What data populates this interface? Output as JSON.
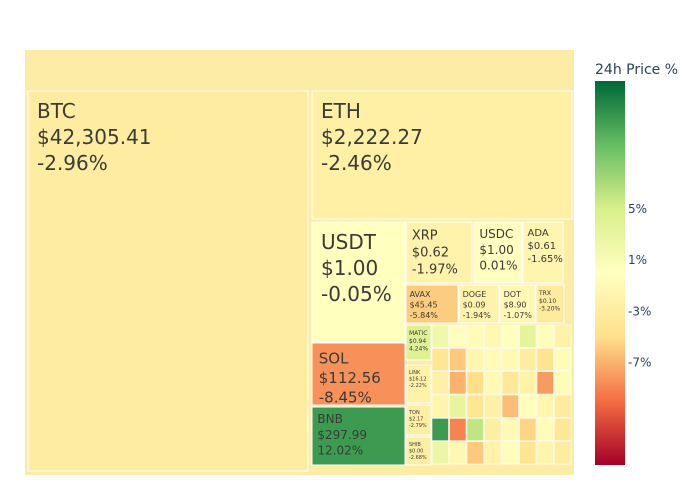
{
  "chart_data": {
    "type": "treemap",
    "title": "",
    "colorbar": {
      "title": "24h Price %",
      "ticks": [
        {
          "label": "5%",
          "value": 5
        },
        {
          "label": "1%",
          "value": 1
        },
        {
          "label": "-3%",
          "value": -3
        },
        {
          "label": "-7%",
          "value": -7
        }
      ],
      "range": [
        -15,
        15
      ],
      "colors": [
        "#a50026",
        "#f46d43",
        "#fee08b",
        "#ffffbf",
        "#d9ef8b",
        "#66bd63",
        "#006837"
      ]
    },
    "root_color": "#fdeca5",
    "tiles": [
      {
        "symbol": "BTC",
        "price": "$42,305.41",
        "change_label": "-2.96%",
        "change": -2.96
      },
      {
        "symbol": "ETH",
        "price": "$2,222.27",
        "change_label": "-2.46%",
        "change": -2.46
      },
      {
        "symbol": "USDT",
        "price": "$1.00",
        "change_label": "-0.05%",
        "change": -0.05
      },
      {
        "symbol": "SOL",
        "price": "$112.56",
        "change_label": "-8.45%",
        "change": -8.45
      },
      {
        "symbol": "BNB",
        "price": "$297.99",
        "change_label": "12.02%",
        "change": 12.02
      },
      {
        "symbol": "XRP",
        "price": "$0.62",
        "change_label": "-1.97%",
        "change": -1.97
      },
      {
        "symbol": "USDC",
        "price": "$1.00",
        "change_label": "0.01%",
        "change": 0.01
      },
      {
        "symbol": "ADA",
        "price": "$0.61",
        "change_label": "-1.65%",
        "change": -1.65
      },
      {
        "symbol": "AVAX",
        "price": "$45.45",
        "change_label": "-5.84%",
        "change": -5.84
      },
      {
        "symbol": "DOGE",
        "price": "$0.09",
        "change_label": "-1.94%",
        "change": -1.94
      },
      {
        "symbol": "DOT",
        "price": "$8.90",
        "change_label": "-1.07%",
        "change": -1.07
      },
      {
        "symbol": "TRX",
        "price": "$0.10",
        "change_label": "-3.20%",
        "change": -3.2
      },
      {
        "symbol": "MATIC",
        "price": "$0.94",
        "change_label": "4.24%",
        "change": 4.24
      },
      {
        "symbol": "LINK",
        "price": "$16.12",
        "change_label": "-2.22%",
        "change": -2.22
      },
      {
        "symbol": "TON",
        "price": "$2.17",
        "change_label": "-2.79%",
        "change": -2.79
      },
      {
        "symbol": "SHIB",
        "price": "$0.00",
        "change_label": "-2.68%",
        "change": -2.68
      }
    ],
    "small_tile_changes": [
      2.0,
      -0.1,
      -0.5,
      -1.2,
      -0.2,
      3.5,
      -0.3,
      -2.1,
      -4.0,
      -6.0,
      -1.5,
      -0.8,
      -1.0,
      -3.0,
      -4.5,
      -0.5,
      -2.5,
      -7.0,
      -5.0,
      -1.0,
      -3.5,
      -2.0,
      -8.0,
      -0.5,
      -1.8,
      3.0,
      -4.0,
      -2.5,
      -6.5,
      -0.2,
      -1.5,
      -3.2,
      12.0,
      -9.0,
      6.0,
      -2.8,
      -1.0,
      -5.5,
      -0.7,
      -3.8,
      2.5,
      -1.2,
      -6.0,
      -2.0,
      -0.4,
      -4.2,
      -1.6,
      -3.0
    ]
  }
}
